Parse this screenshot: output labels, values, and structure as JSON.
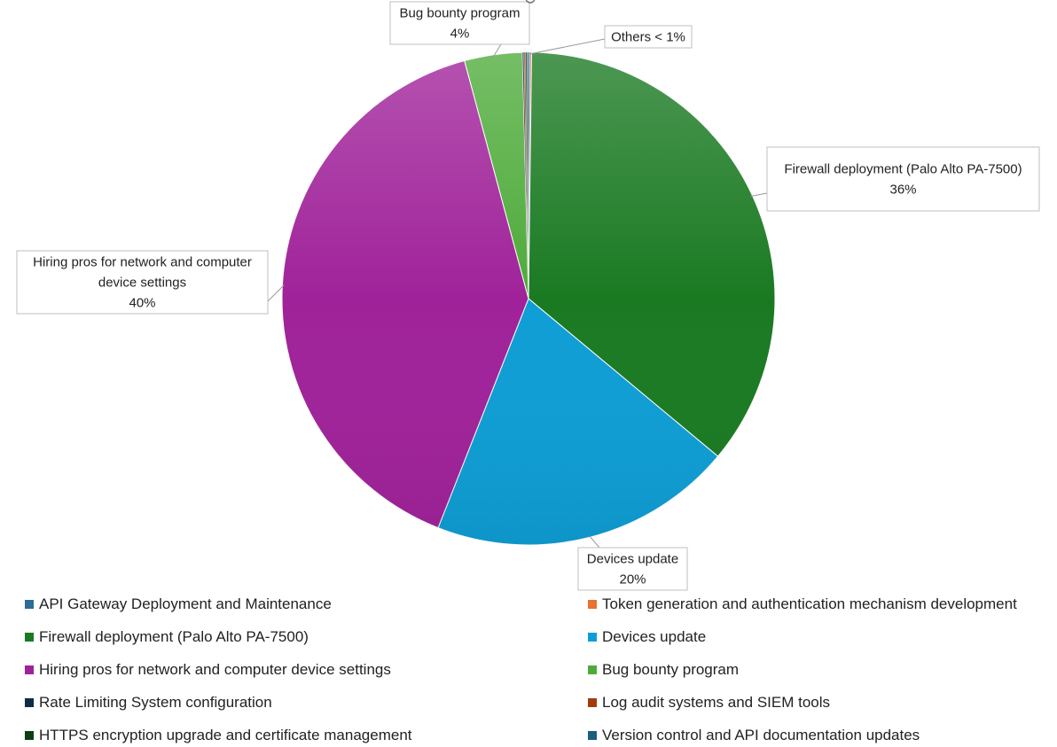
{
  "chart_data": {
    "type": "pie",
    "title": "",
    "slices": [
      {
        "label": "API Gateway Deployment and Maintenance",
        "value": 0.1,
        "color": "#2e6c93"
      },
      {
        "label": "Token generation and authentication mechanism development",
        "value": 0.1,
        "color": "#e97132"
      },
      {
        "label": "Firewall deployment (Palo Alto PA-7500)",
        "value": 36,
        "color": "#1a7a22"
      },
      {
        "label": "Devices update",
        "value": 20,
        "color": "#0e9ed5"
      },
      {
        "label": "Hiring pros for network and computer device settings",
        "value": 40,
        "color": "#a0229a"
      },
      {
        "label": "Bug bounty program",
        "value": 3.8,
        "color": "#4eab3a"
      },
      {
        "label": " Rate Limiting System configuration",
        "value": 0.1,
        "color": "#0f2c45"
      },
      {
        "label": "Log audit systems and SIEM tools",
        "value": 0.1,
        "color": "#a33c0d"
      },
      {
        "label": "HTTPS encryption upgrade and certificate management",
        "value": 0.1,
        "color": "#0e3f14"
      },
      {
        "label": "Version control and API documentation updates",
        "value": 0.1,
        "color": "#1b5e80"
      }
    ],
    "data_labels": [
      {
        "lines": [
          "Firewall deployment (Palo Alto PA-7500)",
          "36%"
        ]
      },
      {
        "lines": [
          "Devices update",
          "20%"
        ]
      },
      {
        "lines": [
          "Hiring pros for network and computer",
          "device settings",
          "40%"
        ]
      },
      {
        "lines": [
          "Bug bounty program",
          "4%"
        ]
      },
      {
        "lines": [
          "Others < 1%"
        ]
      }
    ],
    "legend_position": "bottom"
  }
}
